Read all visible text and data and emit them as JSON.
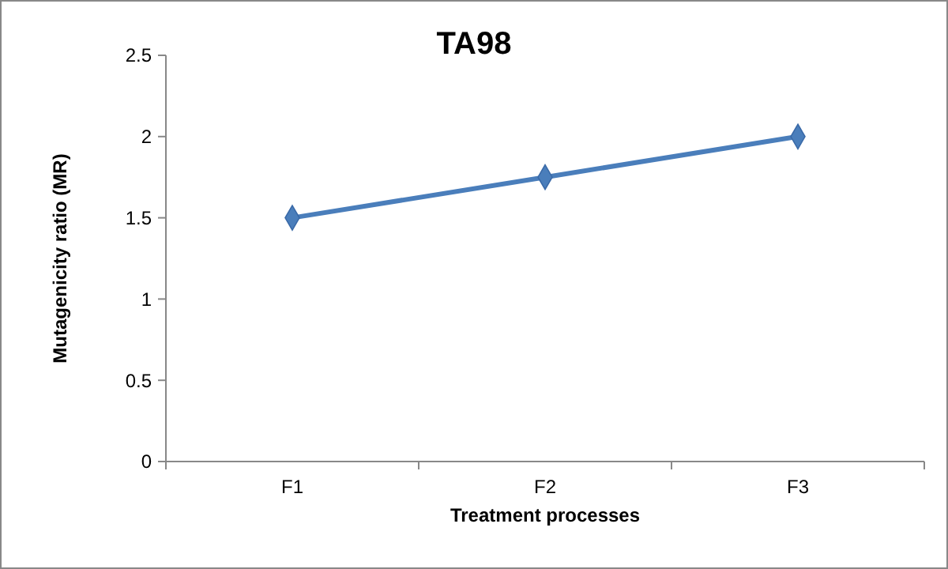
{
  "chart_data": {
    "type": "line",
    "title": "TA98",
    "xlabel": "Treatment processes",
    "ylabel": "Mutagenicity ratio (MR)",
    "categories": [
      "F1",
      "F2",
      "F3"
    ],
    "series": [
      {
        "color": "#4a7ebb",
        "values": [
          1.5,
          1.75,
          2.0
        ]
      }
    ],
    "ylim": [
      0,
      2.5
    ],
    "yticks": [
      0,
      0.5,
      1,
      1.5,
      2,
      2.5
    ],
    "grid": false,
    "marker": "diamond",
    "line_style": "solid"
  }
}
